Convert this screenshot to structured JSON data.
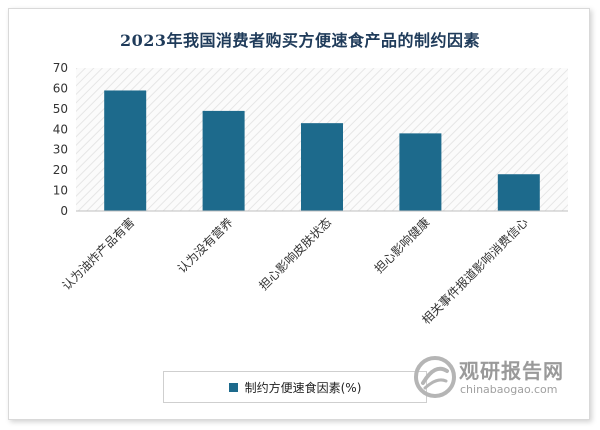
{
  "chart_data": {
    "type": "bar",
    "title": "2023年我国消费者购买方便速食产品的制约因素",
    "categories": [
      "认为油炸产品有害",
      "认为没有营养",
      "担心影响皮肤状态",
      "担心影响健康",
      "相关事件报道影响消费信心"
    ],
    "series": [
      {
        "name": "制约方便速食因素(%)",
        "values": [
          59,
          49,
          43,
          38,
          18
        ],
        "color": "#1d6a8c"
      }
    ],
    "ylim": [
      0,
      70
    ],
    "yticks": [
      0,
      10,
      20,
      30,
      40,
      50,
      60,
      70
    ],
    "grid": false,
    "legend": "bottom-center"
  },
  "watermark": {
    "name_cn": "观研报告网",
    "domain": "chinabaogao.com"
  }
}
